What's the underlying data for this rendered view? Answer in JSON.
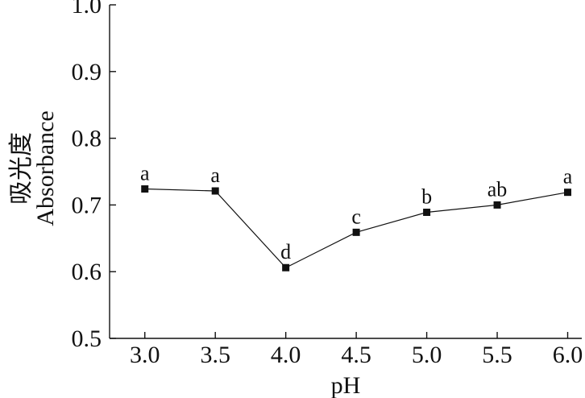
{
  "chart_data": {
    "type": "line",
    "xlabel": "pH",
    "ylabel": "吸光度",
    "ylabel_en": "Absorbance",
    "x_ticks": [
      "3.0",
      "3.5",
      "4.0",
      "4.5",
      "5.0",
      "5.5",
      "6.0"
    ],
    "y_ticks": [
      "0.5",
      "0.6",
      "0.7",
      "0.8",
      "0.9",
      "1.0"
    ],
    "xlim": [
      2.75,
      6.1
    ],
    "ylim": [
      0.5,
      1.0
    ],
    "grid": false,
    "series": [
      {
        "x": [
          3.0,
          3.5,
          4.0,
          4.5,
          5.0,
          5.5,
          6.0
        ],
        "values": [
          0.724,
          0.721,
          0.606,
          0.659,
          0.689,
          0.7,
          0.719
        ],
        "labels": [
          "a",
          "a",
          "d",
          "c",
          "b",
          "ab",
          "a"
        ],
        "marker": "square",
        "color": "#111111"
      }
    ]
  }
}
